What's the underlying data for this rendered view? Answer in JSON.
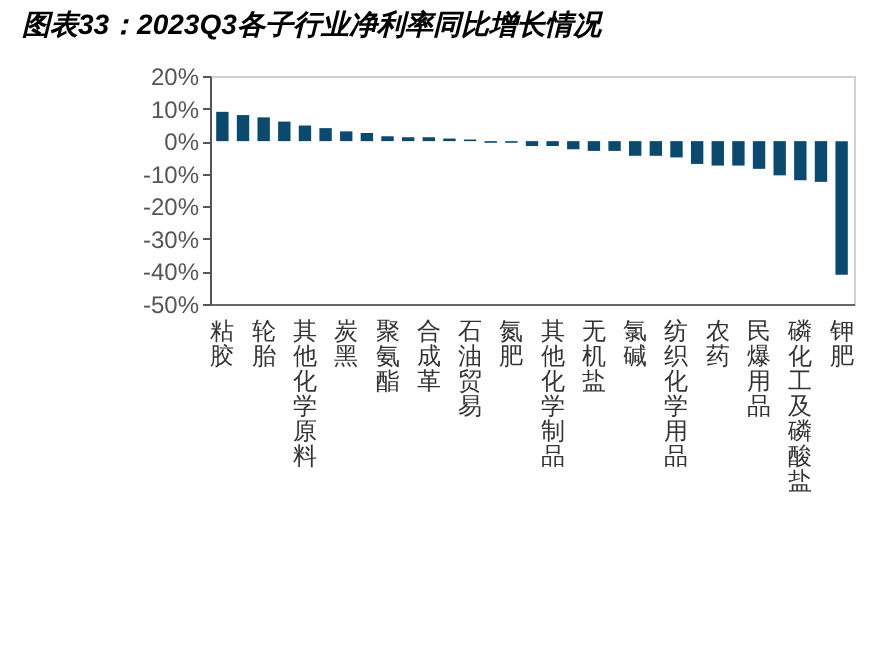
{
  "chart_data": {
    "type": "bar",
    "title": "图表33：2023Q3各子行业净利率同比增长情况",
    "categories": [
      "粘胶",
      null,
      "轮胎",
      null,
      "其他化学原料",
      null,
      "炭黑",
      null,
      "聚氨酯",
      null,
      "合成革",
      null,
      "石油贸易",
      null,
      "氮肥",
      null,
      "其他化学制品",
      null,
      "无机盐",
      null,
      "氯碱",
      null,
      "纺织化学用品",
      null,
      "农药",
      null,
      "民爆用品",
      null,
      "磷化工及磷酸盐",
      null,
      "钾肥"
    ],
    "values": [
      9,
      8,
      7.3,
      6,
      4.8,
      4,
      3,
      2.5,
      1.5,
      1.2,
      1.2,
      0.8,
      0.5,
      -0.5,
      -0.5,
      -1.5,
      -1.5,
      -2.5,
      -3,
      -3,
      -4.5,
      -4.5,
      -5,
      -7,
      -7.5,
      -7.5,
      -8.5,
      -10.5,
      -12,
      -12.5,
      -41
    ],
    "color": "#0b4a6e",
    "ylim": [
      -50,
      20
    ],
    "yticks": [
      {
        "value": 20,
        "label": "20%"
      },
      {
        "value": 10,
        "label": "10%"
      },
      {
        "value": 0,
        "label": "0%"
      },
      {
        "value": -10,
        "label": "-10%"
      },
      {
        "value": -20,
        "label": "-20%"
      },
      {
        "value": -30,
        "label": "-30%"
      },
      {
        "value": -40,
        "label": "-40%"
      },
      {
        "value": -50,
        "label": "-50%"
      }
    ],
    "grid": false
  }
}
